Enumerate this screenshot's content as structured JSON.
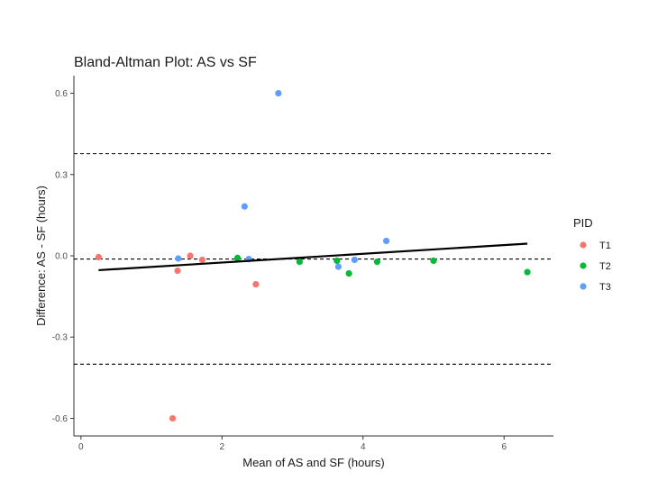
{
  "chart_data": {
    "type": "scatter",
    "title": "Bland-Altman Plot: AS vs SF",
    "xlabel": "Mean of AS and SF (hours)",
    "ylabel": "Difference: AS - SF (hours)",
    "xlim": [
      -0.1,
      6.7
    ],
    "ylim": [
      -0.665,
      0.665
    ],
    "x_ticks": [
      0,
      2,
      4,
      6
    ],
    "y_ticks": [
      -0.6,
      -0.3,
      0.0,
      0.3,
      0.6
    ],
    "x_tick_labels": [
      "0",
      "2",
      "4",
      "6"
    ],
    "y_tick_labels": [
      "-0.6",
      "-0.3",
      "0.0",
      "0.3",
      "0.6"
    ],
    "grid": false,
    "legend": {
      "title": "PID",
      "placement": "right",
      "entries": [
        {
          "label": "T1",
          "color": "#F8766D"
        },
        {
          "label": "T2",
          "color": "#00BA38"
        },
        {
          "label": "T3",
          "color": "#619CFF"
        }
      ]
    },
    "series": [
      {
        "name": "T1",
        "color": "#F8766D",
        "points": [
          {
            "x": 0.25,
            "y": -0.005
          },
          {
            "x": 1.37,
            "y": -0.055
          },
          {
            "x": 1.55,
            "y": 0.0
          },
          {
            "x": 1.72,
            "y": -0.015
          },
          {
            "x": 2.48,
            "y": -0.105
          },
          {
            "x": 1.3,
            "y": -0.6
          }
        ]
      },
      {
        "name": "T2",
        "color": "#00BA38",
        "points": [
          {
            "x": 2.22,
            "y": -0.008
          },
          {
            "x": 3.1,
            "y": -0.022
          },
          {
            "x": 3.63,
            "y": -0.018
          },
          {
            "x": 3.8,
            "y": -0.065
          },
          {
            "x": 4.2,
            "y": -0.022
          },
          {
            "x": 5.0,
            "y": -0.018
          },
          {
            "x": 6.33,
            "y": -0.06
          }
        ]
      },
      {
        "name": "T3",
        "color": "#619CFF",
        "points": [
          {
            "x": 1.38,
            "y": -0.01
          },
          {
            "x": 2.32,
            "y": 0.182
          },
          {
            "x": 2.38,
            "y": -0.012
          },
          {
            "x": 2.8,
            "y": 0.6
          },
          {
            "x": 3.65,
            "y": -0.04
          },
          {
            "x": 3.88,
            "y": -0.015
          },
          {
            "x": 4.33,
            "y": 0.055
          }
        ]
      }
    ],
    "reference_lines": [
      {
        "y": 0.377,
        "style": "dashed"
      },
      {
        "y": -0.012,
        "style": "dashed"
      },
      {
        "y": -0.4,
        "style": "dashed"
      }
    ],
    "regression_line": {
      "x0": 0.25,
      "y0": -0.053,
      "x1": 6.33,
      "y1": 0.045,
      "color": "#000000"
    }
  }
}
